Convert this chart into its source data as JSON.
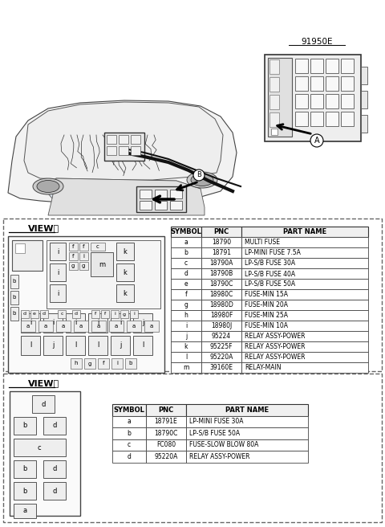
{
  "title": "91950E",
  "bg_color": "#ffffff",
  "view_a_label": "VIEWⒶ",
  "view_b_label": "VIEWⒷ",
  "table_a_headers": [
    "SYMBOL",
    "PNC",
    "PART NAME"
  ],
  "table_a_rows": [
    [
      "a",
      "18790",
      "MULTI FUSE"
    ],
    [
      "b",
      "18791",
      "LP-MINI FUSE 7.5A"
    ],
    [
      "c",
      "18790A",
      "LP-S/B FUSE 30A"
    ],
    [
      "d",
      "18790B",
      "LP-S/B FUSE 40A"
    ],
    [
      "e",
      "18790C",
      "LP-S/B FUSE 50A"
    ],
    [
      "f",
      "18980C",
      "FUSE-MIN 15A"
    ],
    [
      "g",
      "18980D",
      "FUSE-MIN 20A"
    ],
    [
      "h",
      "18980F",
      "FUSE-MIN 25A"
    ],
    [
      "i",
      "18980J",
      "FUSE-MIN 10A"
    ],
    [
      "j",
      "95224",
      "RELAY ASSY-POWER"
    ],
    [
      "k",
      "95225F",
      "RELAY ASSY-POWER"
    ],
    [
      "l",
      "95220A",
      "RELAY ASSY-POWER"
    ],
    [
      "m",
      "39160E",
      "RELAY-MAIN"
    ]
  ],
  "table_b_headers": [
    "SYMBOL",
    "PNC",
    "PART NAME"
  ],
  "table_b_rows": [
    [
      "a",
      "18791E",
      "LP-MINI FUSE 30A"
    ],
    [
      "b",
      "18790C",
      "LP-S/B FUSE 50A"
    ],
    [
      "c",
      "FC080",
      "FUSE-SLOW BLOW 80A"
    ],
    [
      "d",
      "95220A",
      "RELAY ASSY-POWER"
    ]
  ],
  "dash_color": "#666666",
  "line_color": "#000000",
  "fuse_fc": "#eeeeee",
  "table_header_fc": "#ffffff"
}
